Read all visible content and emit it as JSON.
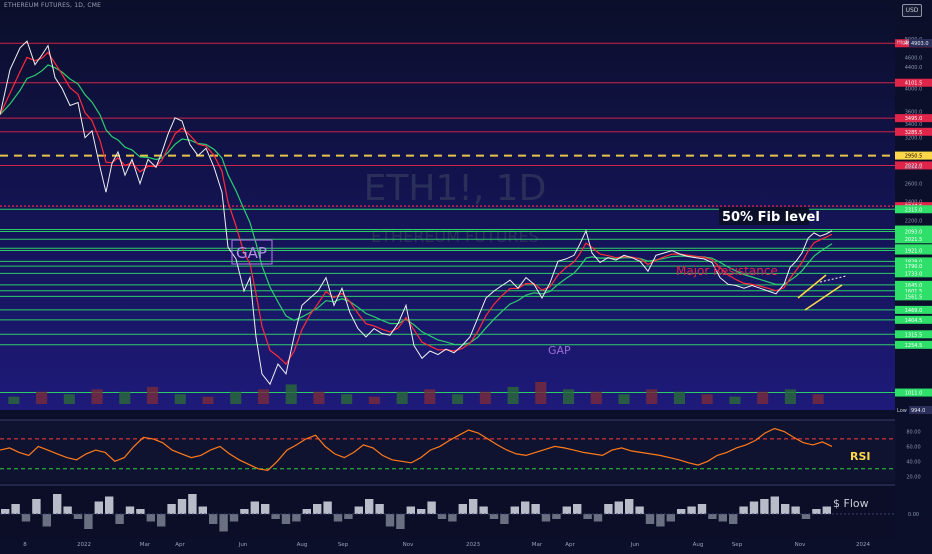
{
  "header": {
    "symbol_line": "ETHEREUM FUTURES, 1D, CME",
    "currency_button": "USD"
  },
  "watermark": {
    "ticker": "ETH1!, 1D",
    "name": "ETHEREUM FUTURES"
  },
  "annotations": {
    "fib": "50% Fib level",
    "major_resistance": "Major Resistance",
    "gap_boxed": "GAP",
    "gap_small": "GAP",
    "rsi": "RSI",
    "money_flow": "$ Flow"
  },
  "colors": {
    "background_top": "#0b0f2a",
    "background_bottom": "#1e1a7a",
    "price_line": "#f0f0f0",
    "ema_red": "#ff2b3a",
    "ema_green": "#2ecc71",
    "support_lines": "#2ee06a",
    "resistance_lines": "#e0254a",
    "fib_line": "#ffd84a",
    "rsi_line": "#ff7a1a",
    "rsi_band_upper": "#ff3b3b",
    "rsi_band_lower": "#2ecc40"
  },
  "chart_data": [
    {
      "type": "line",
      "panel": "price",
      "y_scale": "log",
      "ylim": [
        960,
        5300
      ],
      "x_tick_labels": [
        "8",
        "2022",
        "Mar",
        "Apr",
        "Jun",
        "Aug",
        "Sep",
        "Nov",
        "2023",
        "Mar",
        "Apr",
        "Jun",
        "Aug",
        "Sep",
        "Nov",
        "2024"
      ],
      "y_tick_labels": [
        5000.0,
        4600.0,
        4400.0,
        4000.0,
        3600.0,
        3400.0,
        3200.0,
        2800.0,
        2600.0,
        2400.0,
        2200.0
      ],
      "high_label": "High",
      "high_value": "4903.0",
      "low_label": "Low",
      "low_value": "994.0",
      "series": [
        {
          "role": "price",
          "points": [
            [
              0,
              3550
            ],
            [
              10,
              4350
            ],
            [
              20,
              4800
            ],
            [
              27,
              4950
            ],
            [
              35,
              4450
            ],
            [
              42,
              4650
            ],
            [
              48,
              4850
            ],
            [
              55,
              4200
            ],
            [
              62,
              4000
            ],
            [
              70,
              3700
            ],
            [
              78,
              3750
            ],
            [
              85,
              3200
            ],
            [
              92,
              3300
            ],
            [
              100,
              2800
            ],
            [
              106,
              2500
            ],
            [
              112,
              2850
            ],
            [
              118,
              3000
            ],
            [
              125,
              2700
            ],
            [
              132,
              2900
            ],
            [
              140,
              2600
            ],
            [
              148,
              2900
            ],
            [
              156,
              2800
            ],
            [
              162,
              3000
            ],
            [
              168,
              3250
            ],
            [
              175,
              3500
            ],
            [
              182,
              3450
            ],
            [
              190,
              3100
            ],
            [
              198,
              2950
            ],
            [
              206,
              3050
            ],
            [
              214,
              2800
            ],
            [
              222,
              2500
            ],
            [
              228,
              1950
            ],
            [
              236,
              1850
            ],
            [
              244,
              1600
            ],
            [
              250,
              1700
            ],
            [
              256,
              1300
            ],
            [
              262,
              1100
            ],
            [
              270,
              1050
            ],
            [
              278,
              1150
            ],
            [
              286,
              1100
            ],
            [
              294,
              1300
            ],
            [
              302,
              1500
            ],
            [
              310,
              1550
            ],
            [
              318,
              1600
            ],
            [
              326,
              1700
            ],
            [
              334,
              1500
            ],
            [
              342,
              1620
            ],
            [
              350,
              1450
            ],
            [
              358,
              1350
            ],
            [
              366,
              1300
            ],
            [
              374,
              1350
            ],
            [
              382,
              1320
            ],
            [
              390,
              1310
            ],
            [
              398,
              1380
            ],
            [
              406,
              1500
            ],
            [
              414,
              1250
            ],
            [
              422,
              1180
            ],
            [
              430,
              1220
            ],
            [
              438,
              1200
            ],
            [
              446,
              1230
            ],
            [
              454,
              1210
            ],
            [
              462,
              1250
            ],
            [
              470,
              1300
            ],
            [
              478,
              1420
            ],
            [
              486,
              1550
            ],
            [
              494,
              1600
            ],
            [
              502,
              1640
            ],
            [
              510,
              1680
            ],
            [
              518,
              1620
            ],
            [
              526,
              1700
            ],
            [
              534,
              1650
            ],
            [
              542,
              1550
            ],
            [
              550,
              1660
            ],
            [
              558,
              1830
            ],
            [
              566,
              1850
            ],
            [
              574,
              1880
            ],
            [
              580,
              1980
            ],
            [
              586,
              2100
            ],
            [
              592,
              1900
            ],
            [
              600,
              1820
            ],
            [
              608,
              1860
            ],
            [
              616,
              1840
            ],
            [
              624,
              1880
            ],
            [
              632,
              1860
            ],
            [
              640,
              1830
            ],
            [
              648,
              1750
            ],
            [
              656,
              1880
            ],
            [
              664,
              1900
            ],
            [
              672,
              1920
            ],
            [
              680,
              1890
            ],
            [
              688,
              1870
            ],
            [
              696,
              1860
            ],
            [
              704,
              1850
            ],
            [
              712,
              1820
            ],
            [
              720,
              1700
            ],
            [
              728,
              1650
            ],
            [
              736,
              1640
            ],
            [
              744,
              1620
            ],
            [
              752,
              1640
            ],
            [
              760,
              1620
            ],
            [
              768,
              1600
            ],
            [
              776,
              1580
            ],
            [
              784,
              1650
            ],
            [
              790,
              1780
            ],
            [
              796,
              1830
            ],
            [
              802,
              1900
            ],
            [
              808,
              2030
            ],
            [
              814,
              2080
            ],
            [
              820,
              2050
            ],
            [
              826,
              2070
            ],
            [
              832,
              2100
            ]
          ]
        },
        {
          "role": "ema_fast",
          "color": "red"
        },
        {
          "role": "ema_slow",
          "color": "green"
        }
      ],
      "horizontal_levels": {
        "resistance": [
          "4902.5",
          "4101.5",
          "3495.0",
          "3285.5",
          "2822.0"
        ],
        "fib": [
          "2950.5"
        ],
        "major_resistance": [
          "2347.5"
        ],
        "support": [
          "2315.0",
          "2112.0",
          "2093.0",
          "2021.5",
          "1940.5",
          "1921.0",
          "1829.0",
          "1790.0",
          "1733.0",
          "1645.0",
          "1601.5",
          "1561.5",
          "1469.0",
          "1404.5",
          "1315.5",
          "1254.5",
          "1011.0"
        ]
      }
    },
    {
      "type": "bar",
      "panel": "volume",
      "values": [
        3,
        5,
        4,
        6,
        5,
        7,
        4,
        3,
        5,
        6,
        8,
        5,
        4,
        3,
        5,
        6,
        4,
        5,
        7,
        9,
        6,
        5,
        4,
        6,
        5,
        4,
        3,
        5,
        6,
        4
      ]
    },
    {
      "type": "line",
      "panel": "rsi",
      "yticks": [
        "80.00",
        "60.00",
        "40.00",
        "20.00"
      ],
      "ylim": [
        15,
        90
      ],
      "values": [
        55,
        58,
        52,
        48,
        60,
        55,
        50,
        45,
        42,
        50,
        55,
        52,
        40,
        45,
        60,
        72,
        70,
        65,
        55,
        50,
        45,
        48,
        55,
        60,
        50,
        42,
        36,
        30,
        28,
        40,
        55,
        62,
        70,
        75,
        60,
        50,
        45,
        52,
        62,
        58,
        48,
        42,
        40,
        38,
        45,
        55,
        60,
        68,
        75,
        82,
        78,
        70,
        62,
        55,
        50,
        48,
        52,
        56,
        60,
        58,
        55,
        52,
        50,
        48,
        55,
        58,
        54,
        52,
        50,
        48,
        45,
        42,
        38,
        35,
        40,
        48,
        52,
        58,
        62,
        68,
        78,
        84,
        80,
        72,
        65,
        62,
        66,
        60
      ]
    },
    {
      "type": "bar",
      "panel": "money_flow",
      "yticks": [
        "0.00"
      ],
      "values": [
        2,
        4,
        -3,
        6,
        -5,
        8,
        3,
        -2,
        -6,
        5,
        7,
        -4,
        3,
        2,
        -3,
        -5,
        4,
        6,
        8,
        3,
        -4,
        -7,
        -3,
        2,
        5,
        4,
        -2,
        -4,
        -3,
        2,
        4,
        5,
        -3,
        -2,
        3,
        6,
        4,
        -5,
        -6,
        3,
        2,
        5,
        -2,
        -3,
        4,
        6,
        3,
        -2,
        -4,
        3,
        5,
        4,
        -3,
        -2,
        3,
        4,
        -2,
        -3,
        4,
        5,
        6,
        3,
        -4,
        -5,
        -3,
        2,
        3,
        4,
        -2,
        -3,
        -4,
        3,
        5,
        6,
        7,
        4,
        3,
        -2,
        2,
        3
      ]
    }
  ]
}
